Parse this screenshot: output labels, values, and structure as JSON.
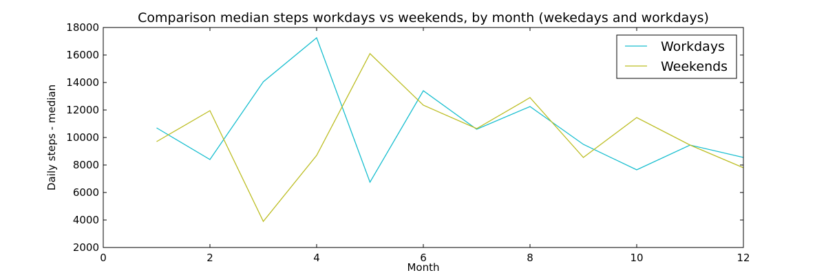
{
  "chart_data": {
    "type": "line",
    "title": "Comparison median steps workdays vs weekends, by month (wekedays and workdays)",
    "xlabel": "Month",
    "ylabel": "Daily steps - median",
    "xlim": [
      0,
      12
    ],
    "ylim": [
      2000,
      18000
    ],
    "xticks": [
      0,
      2,
      4,
      6,
      8,
      10,
      12
    ],
    "yticks": [
      2000,
      4000,
      6000,
      8000,
      10000,
      12000,
      14000,
      16000,
      18000
    ],
    "grid": false,
    "legend_position": "top-right",
    "x": [
      1,
      2,
      3,
      4,
      5,
      6,
      7,
      8,
      9,
      10,
      11,
      12
    ],
    "series": [
      {
        "name": "Workdays",
        "color": "#17becf",
        "values": [
          10700,
          8400,
          14050,
          17250,
          6750,
          13400,
          10600,
          12250,
          9500,
          7650,
          9450,
          8550
        ]
      },
      {
        "name": "Weekends",
        "color": "#bcbd22",
        "values": [
          9700,
          11950,
          3900,
          8700,
          16100,
          12350,
          10650,
          12900,
          8550,
          11450,
          9450,
          7800
        ]
      }
    ]
  }
}
